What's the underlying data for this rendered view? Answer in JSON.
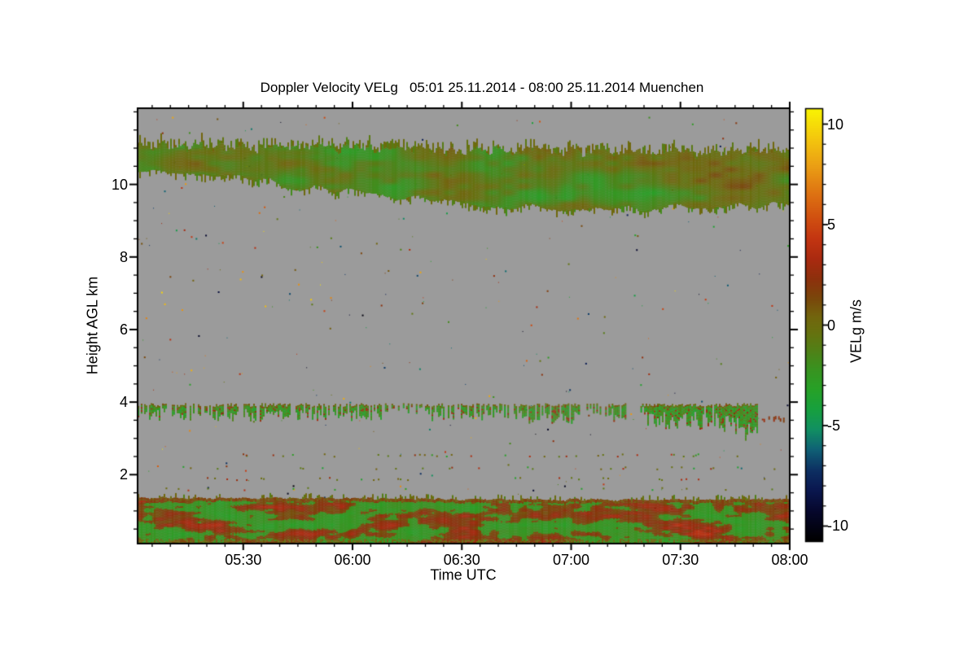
{
  "meta": {
    "background": "#ffffff",
    "text_color": "#000000",
    "frame_color": "#000000"
  },
  "chart_data": {
    "type": "heatmap",
    "title": "Doppler Velocity VELg   05:01 25.11.2014 - 08:00 25.11.2014 Muenchen",
    "variable": "Doppler Velocity VELg",
    "site": "Muenchen",
    "time_start": "05:01 25.11.2014",
    "time_end": "08:00 25.11.2014",
    "xlabel": "Time UTC",
    "ylabel": "Height AGL km",
    "colorbar_label": "VELg m/s",
    "no_signal_color": "#9b9b9b",
    "x_axis": {
      "start_min": 301,
      "end_min": 480,
      "minor_step_min": 5,
      "major_ticks": [
        {
          "minute": 330,
          "label": "05:30"
        },
        {
          "minute": 360,
          "label": "06:00"
        },
        {
          "minute": 390,
          "label": "06:30"
        },
        {
          "minute": 420,
          "label": "07:00"
        },
        {
          "minute": 450,
          "label": "07:30"
        },
        {
          "minute": 480,
          "label": "08:00"
        }
      ]
    },
    "y_axis": {
      "min_km": 0.1,
      "max_km": 12.1,
      "minor_step_km": 0.5,
      "major_ticks": [
        2,
        4,
        6,
        8,
        10
      ]
    },
    "colorbar": {
      "min": -10.75,
      "max": 10.75,
      "minor_step": 1,
      "major_ticks": [
        {
          "value": 10,
          "label": "10"
        },
        {
          "value": 5,
          "label": "5"
        },
        {
          "value": 0,
          "label": "0"
        },
        {
          "value": -5,
          "label": "-5"
        },
        {
          "value": -10,
          "label": "-10"
        }
      ],
      "stops": [
        [
          -10.75,
          "#000000"
        ],
        [
          -9.3,
          "#06072c"
        ],
        [
          -8.2,
          "#0a1850"
        ],
        [
          -7.2,
          "#0d3163"
        ],
        [
          -6.2,
          "#0f6175"
        ],
        [
          -5.2,
          "#119062"
        ],
        [
          -4.2,
          "#17a03e"
        ],
        [
          -3.2,
          "#27a127"
        ],
        [
          -2.2,
          "#399320"
        ],
        [
          -1.2,
          "#527f16"
        ],
        [
          -0.4,
          "#66720f"
        ],
        [
          0.4,
          "#72650d"
        ],
        [
          1.3,
          "#79480b"
        ],
        [
          2.3,
          "#8d300c"
        ],
        [
          3.3,
          "#aa2a10"
        ],
        [
          4.3,
          "#c33511"
        ],
        [
          5.3,
          "#d04f10"
        ],
        [
          6.6,
          "#de7412"
        ],
        [
          8.0,
          "#eba114"
        ],
        [
          9.2,
          "#f3c40e"
        ],
        [
          10.75,
          "#f9f303"
        ]
      ]
    },
    "layers": [
      {
        "name": "background-noise-speckles",
        "type": "speckles",
        "count": 380,
        "km_range": [
          0.2,
          12.0
        ],
        "value_range": [
          -10.5,
          10.5
        ]
      },
      {
        "name": "speckle-rows",
        "type": "rows",
        "rows": [
          {
            "km": 2.55,
            "t_range": [
              330,
              470
            ],
            "density": 0.2
          },
          {
            "km": 2.2,
            "t_range": [
              308,
              478
            ],
            "density": 0.12
          },
          {
            "km": 1.9,
            "t_range": [
              318,
              478
            ],
            "density": 0.1
          },
          {
            "km": 1.62,
            "t_range": [
              304,
              478
            ],
            "density": 0.09
          }
        ]
      },
      {
        "name": "cirrus-cloud-band",
        "type": "band",
        "texture": "cirrus",
        "top_km_points": [
          [
            301,
            11.05
          ],
          [
            390,
            10.95
          ],
          [
            480,
            10.85
          ]
        ],
        "bottom_km_points": [
          [
            301,
            10.37
          ],
          [
            319,
            10.3
          ],
          [
            337,
            10.1
          ],
          [
            357,
            9.82
          ],
          [
            375,
            9.63
          ],
          [
            391,
            9.48
          ],
          [
            406,
            9.33
          ],
          [
            420,
            9.38
          ],
          [
            433,
            9.3
          ],
          [
            447,
            9.43
          ],
          [
            460,
            9.36
          ],
          [
            473,
            9.48
          ],
          [
            480,
            9.5
          ]
        ],
        "base_value": -0.7,
        "edge_jitter": 0.28,
        "streaks_above": 0.55,
        "streaks_below": 0.4
      },
      {
        "name": "mid-level-cloud-band",
        "type": "broken-band",
        "top_km": 3.92,
        "segments": [
          {
            "t": [
              301,
              368
            ],
            "density": 0.7,
            "depth": 0.3
          },
          {
            "t": [
              368,
              379
            ],
            "density": 0.3,
            "depth": 0.18
          },
          {
            "t": [
              379,
              394
            ],
            "density": 0.7,
            "depth": 0.3
          },
          {
            "t": [
              394,
              407
            ],
            "density": 0.65,
            "depth": 0.28
          },
          {
            "t": [
              407,
              422
            ],
            "density": 0.92,
            "depth": 0.42
          },
          {
            "t": [
              422,
              428
            ],
            "density": 0.35,
            "depth": 0.2
          },
          {
            "t": [
              428,
              435
            ],
            "density": 0.75,
            "depth": 0.32
          },
          {
            "t": [
              435,
              440
            ],
            "density": 0.15,
            "depth": 0.15
          },
          {
            "t": [
              440,
              471
            ],
            "density": 0.95,
            "depth": 0.5,
            "descend": true
          },
          {
            "t": [
              471,
              480
            ],
            "density": 0.4,
            "depth": 0.08,
            "warm": true,
            "top_km": 3.58
          }
        ]
      },
      {
        "name": "boundary-layer-band",
        "type": "band",
        "texture": "boundary",
        "top_km_points": [
          [
            301,
            1.36
          ],
          [
            360,
            1.34
          ],
          [
            420,
            1.3
          ],
          [
            480,
            1.31
          ]
        ],
        "bottom_km_points": [
          [
            301,
            0.1
          ],
          [
            480,
            0.1
          ]
        ],
        "base_value": -2.9,
        "edge_jitter": 0.07,
        "streaks_above": 0.3,
        "streaks_below": 0
      }
    ]
  }
}
